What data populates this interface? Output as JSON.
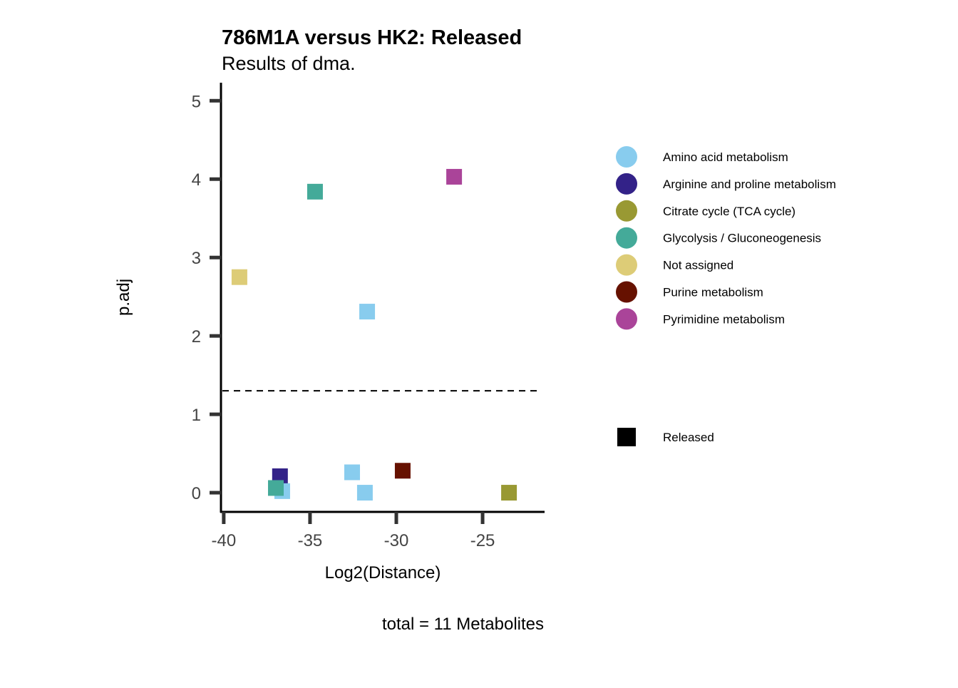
{
  "chart_data": {
    "type": "scatter",
    "title": "786M1A versus HK2: Released",
    "subtitle": "Results of dma.",
    "xlabel": "Log2(Distance)",
    "ylabel": "p.adj",
    "caption": "total = 11 Metabolites",
    "xlim": [
      -40.16,
      -21.45
    ],
    "ylim": [
      -0.245,
      5.23
    ],
    "xticks": [
      -40,
      -35,
      -30,
      -25
    ],
    "yticks": [
      0,
      1,
      2,
      3,
      4,
      5
    ],
    "grid": false,
    "threshold": 1.3,
    "legend_position": "right",
    "legend": [
      {
        "label": "Amino acid metabolism",
        "color": "#88CCEE"
      },
      {
        "label": "Arginine and proline metabolism",
        "color": "#332288"
      },
      {
        "label": "Citrate cycle (TCA cycle)",
        "color": "#999933"
      },
      {
        "label": "Glycolysis / Gluconeogenesis",
        "color": "#44AA99"
      },
      {
        "label": "Not assigned",
        "color": "#DDCC77"
      },
      {
        "label": "Purine metabolism",
        "color": "#661100"
      },
      {
        "label": "Pyrimidine metabolism",
        "color": "#AA4499"
      }
    ],
    "shape_legend": [
      {
        "label": "Released",
        "shape": "square"
      }
    ],
    "points": [
      {
        "x": -26.65,
        "y": 4.03,
        "group": "Pyrimidine metabolism"
      },
      {
        "x": -34.71,
        "y": 3.84,
        "group": "Glycolysis / Gluconeogenesis"
      },
      {
        "x": -39.09,
        "y": 2.75,
        "group": "Not assigned"
      },
      {
        "x": -31.69,
        "y": 2.31,
        "group": "Amino acid metabolism"
      },
      {
        "x": -36.74,
        "y": 0.21,
        "group": "Arginine and proline metabolism"
      },
      {
        "x": -36.61,
        "y": 0.02,
        "group": "Amino acid metabolism"
      },
      {
        "x": -36.98,
        "y": 0.06,
        "group": "Glycolysis / Gluconeogenesis"
      },
      {
        "x": -32.56,
        "y": 0.26,
        "group": "Amino acid metabolism"
      },
      {
        "x": -31.82,
        "y": 0.0,
        "group": "Amino acid metabolism"
      },
      {
        "x": -29.63,
        "y": 0.28,
        "group": "Purine metabolism"
      },
      {
        "x": -23.47,
        "y": 0.0,
        "group": "Citrate cycle (TCA cycle)"
      }
    ]
  }
}
